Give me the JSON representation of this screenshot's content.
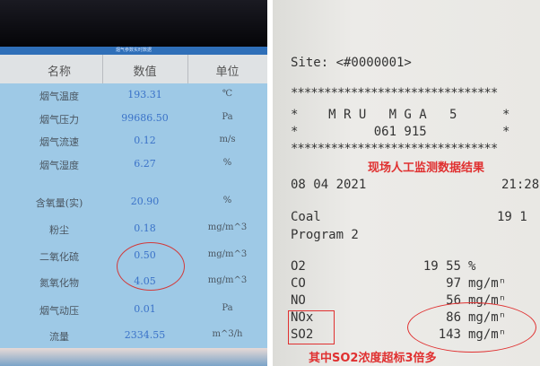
{
  "left_screen": {
    "title": "烟气参数实时数据",
    "headers": [
      "名称",
      "数值",
      "单位"
    ],
    "rows": [
      {
        "name": "烟气温度",
        "value": "193.31",
        "unit": "℃"
      },
      {
        "name": "烟气压力",
        "value": "99686.50",
        "unit": "Pa"
      },
      {
        "name": "烟气流速",
        "value": "0.12",
        "unit": "m/s"
      },
      {
        "name": "烟气湿度",
        "value": "6.27",
        "unit": "%"
      },
      {
        "name": "含氧量(实)",
        "value": "20.90",
        "unit": "%"
      },
      {
        "name": "粉尘",
        "value": "0.18",
        "unit": "mg/m^3"
      },
      {
        "name": "二氧化硫",
        "value": "0.50",
        "unit": "mg/m^3"
      },
      {
        "name": "氮氧化物",
        "value": "4.05",
        "unit": "mg/m^3"
      },
      {
        "name": "烟气动压",
        "value": "0.01",
        "unit": "Pa"
      },
      {
        "name": "流量",
        "value": "2334.55",
        "unit": "m^3/h"
      }
    ]
  },
  "receipt": {
    "site": "Site: <#0000001>",
    "stars": "*******************************",
    "model": "*    M R U   M G A   5      *",
    "serial": "*          061 915          *",
    "date": "08 04 2021",
    "time": "21:28",
    "fuel": "Coal",
    "fuel_value": "19 1",
    "program": "Program 2",
    "measurements": [
      {
        "name": "O2",
        "value": "19 55",
        "unit": "%"
      },
      {
        "name": "CO",
        "value": "97",
        "unit": "mg/mⁿ"
      },
      {
        "name": "NO",
        "value": "56",
        "unit": "mg/mⁿ"
      },
      {
        "name": "NOx",
        "value": "86",
        "unit": "mg/mⁿ"
      },
      {
        "name": "SO2",
        "value": "143",
        "unit": "mg/mⁿ"
      }
    ]
  },
  "annotations": {
    "top_label": "现场人工监测数据结果",
    "bottom_label": "其中SO2浓度超标3倍多",
    "color": "#e03030"
  }
}
